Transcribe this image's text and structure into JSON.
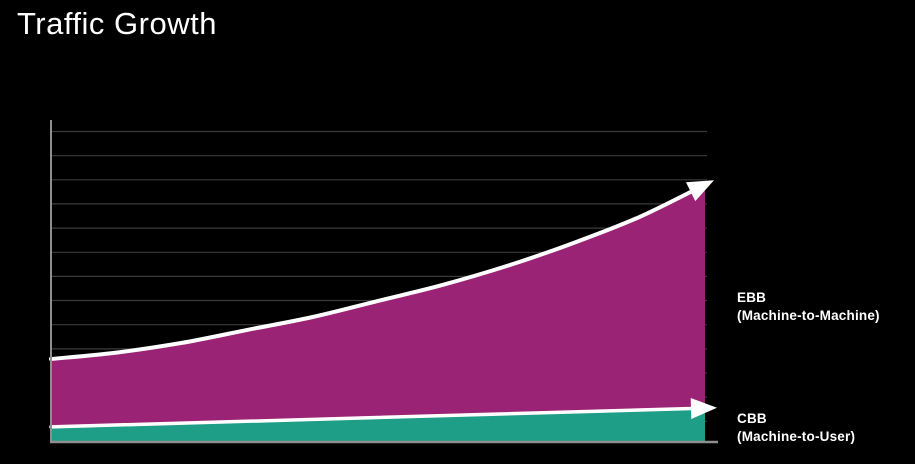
{
  "title": "Traffic Growth",
  "colors": {
    "background": "#000000",
    "ebb_fill": "#9b2376",
    "cbb_fill": "#1e9e87",
    "trend_line": "#ffffff",
    "gridline": "#3a3a3a",
    "axis": "#8f8f8f",
    "text": "#ffffff"
  },
  "chart_data": {
    "type": "area",
    "title": "Traffic Growth",
    "x": [
      0,
      1,
      2,
      3,
      4,
      5,
      6,
      7,
      8,
      9,
      10
    ],
    "xlabel": "",
    "ylabel": "",
    "x_tick_labels": [],
    "y_tick_labels": [],
    "ylim": [
      0,
      100
    ],
    "grid": "horizontal",
    "gridline_count": 13,
    "legend_position": "right of line ends",
    "series": [
      {
        "name": "EBB (Machine-to-Machine)",
        "label_line1": "EBB",
        "label_line2": "(Machine-to-Machine)",
        "color": "#9b2376",
        "shape": "exponential growth",
        "arrow_direction": "up-right",
        "values": [
          26,
          28,
          31,
          35,
          39,
          44,
          49,
          55,
          62,
          70,
          80
        ]
      },
      {
        "name": "CBB (Machine-to-User)",
        "label_line1": "CBB",
        "label_line2": "(Machine-to-User)",
        "color": "#1e9e87",
        "shape": "slow linear growth",
        "arrow_direction": "right",
        "values": [
          5,
          5.6,
          6.2,
          6.7,
          7.3,
          7.9,
          8.5,
          9,
          9.6,
          10.2,
          10.8
        ]
      }
    ]
  }
}
